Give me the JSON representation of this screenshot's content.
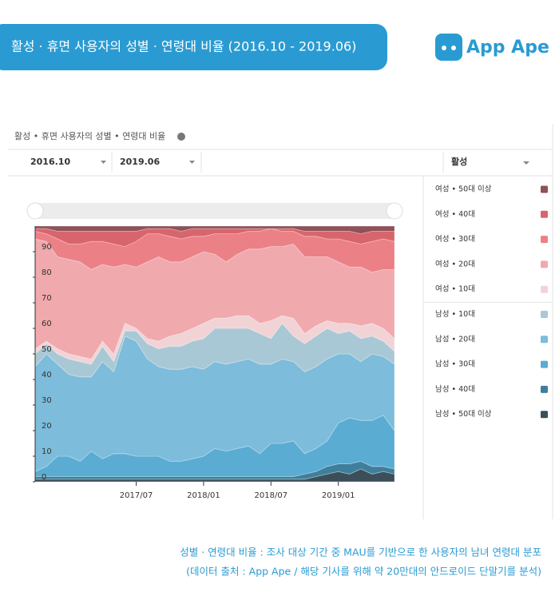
{
  "banner": "활성 · 휴면 사용자의 성별 · 연령대 비율 (2016.10 - 2019.06)",
  "logo": "App Ape",
  "filters": {
    "start": "2016.10",
    "end": "2019.06",
    "segment": "활성"
  },
  "caption": [
    "성별 · 연령대 비율 : 조사 대상 기간 중 MAU를 기반으로 한 사용자의 남녀 연령대 분포",
    "(데이터 출처 : App Ape / 해당 기사를 위해 약 20만대의 안드로이드 단말기를 분석)"
  ],
  "chart_data": {
    "type": "stacked_area",
    "title": "활성 • 휴면 사용자의 성별 • 연령대 비율",
    "x": [
      "2016/10",
      "2016/11",
      "2016/12",
      "2017/01",
      "2017/02",
      "2017/03",
      "2017/04",
      "2017/05",
      "2017/06",
      "2017/07",
      "2017/08",
      "2017/09",
      "2017/10",
      "2017/11",
      "2017/12",
      "2018/01",
      "2018/02",
      "2018/03",
      "2018/04",
      "2018/05",
      "2018/06",
      "2018/07",
      "2018/08",
      "2018/09",
      "2018/10",
      "2018/11",
      "2018/12",
      "2019/01",
      "2019/02",
      "2019/03",
      "2019/04",
      "2019/05",
      "2019/06"
    ],
    "xticks": [
      "2017/07",
      "2018/01",
      "2018/07",
      "2019/01"
    ],
    "ylim": [
      0,
      100
    ],
    "yticks": [
      0,
      10,
      20,
      30,
      40,
      50,
      60,
      70,
      80,
      90
    ],
    "series": [
      {
        "name": "남성 • 50대 이상",
        "color": "#3b4f5a",
        "values": [
          1,
          1,
          1,
          1,
          1,
          1,
          1,
          1,
          1,
          1,
          1,
          1,
          1,
          1,
          1,
          1,
          1,
          1,
          1,
          1,
          1,
          1,
          1,
          1,
          1,
          2,
          3,
          4,
          3,
          5,
          3,
          4,
          3
        ]
      },
      {
        "name": "남성 • 40대",
        "color": "#3f7f9c",
        "values": [
          1,
          1,
          1,
          1,
          1,
          1,
          1,
          1,
          1,
          1,
          1,
          1,
          1,
          1,
          1,
          1,
          1,
          1,
          1,
          1,
          1,
          1,
          1,
          1,
          2,
          2,
          3,
          3,
          4,
          3,
          3,
          2,
          2
        ]
      },
      {
        "name": "남성 • 30대",
        "color": "#5aacd3",
        "values": [
          2,
          4,
          8,
          8,
          6,
          10,
          7,
          9,
          9,
          8,
          8,
          8,
          6,
          6,
          7,
          8,
          11,
          10,
          11,
          12,
          9,
          13,
          13,
          14,
          8,
          9,
          10,
          16,
          18,
          16,
          18,
          20,
          15
        ]
      },
      {
        "name": "남성 • 20대",
        "color": "#7dbcda",
        "values": [
          41,
          44,
          36,
          32,
          33,
          29,
          38,
          32,
          46,
          45,
          38,
          35,
          36,
          36,
          36,
          34,
          34,
          34,
          34,
          34,
          35,
          31,
          33,
          31,
          32,
          32,
          32,
          27,
          25,
          23,
          26,
          23,
          26
        ]
      },
      {
        "name": "남성 • 10대",
        "color": "#a9c8d5",
        "values": [
          5,
          4,
          4,
          6,
          6,
          5,
          6,
          4,
          2,
          4,
          6,
          7,
          9,
          9,
          10,
          12,
          13,
          14,
          13,
          12,
          12,
          10,
          14,
          10,
          11,
          12,
          12,
          8,
          9,
          9,
          7,
          6,
          5
        ]
      },
      {
        "name": "여성 • 10대",
        "color": "#f1d3d6",
        "values": [
          2,
          1,
          2,
          2,
          2,
          2,
          2,
          3,
          3,
          1,
          2,
          3,
          4,
          5,
          5,
          6,
          4,
          4,
          5,
          5,
          4,
          7,
          3,
          7,
          4,
          4,
          3,
          4,
          3,
          5,
          5,
          5,
          5
        ]
      },
      {
        "name": "여성 • 20대",
        "color": "#f0a9ad",
        "values": [
          43,
          39,
          36,
          37,
          37,
          35,
          30,
          34,
          23,
          24,
          30,
          33,
          29,
          28,
          28,
          28,
          25,
          22,
          24,
          26,
          29,
          29,
          27,
          29,
          30,
          27,
          25,
          24,
          22,
          23,
          20,
          23,
          27
        ]
      },
      {
        "name": "여성 • 30대",
        "color": "#ec8087",
        "values": [
          3,
          3,
          7,
          6,
          7,
          11,
          9,
          9,
          7,
          10,
          11,
          9,
          10,
          9,
          8,
          6,
          8,
          11,
          8,
          7,
          7,
          7,
          6,
          5,
          8,
          8,
          7,
          9,
          10,
          9,
          12,
          12,
          11
        ]
      },
      {
        "name": "여성 • 40대",
        "color": "#d8656d",
        "values": [
          1,
          2,
          3,
          5,
          5,
          4,
          4,
          5,
          6,
          4,
          2,
          2,
          3,
          3,
          3,
          3,
          2,
          2,
          2,
          1,
          1,
          0,
          1,
          1,
          2,
          2,
          3,
          3,
          4,
          4,
          4,
          3,
          4
        ]
      },
      {
        "name": "여성 • 50대 이상",
        "color": "#8e5258",
        "values": [
          1,
          1,
          2,
          2,
          2,
          2,
          2,
          2,
          2,
          2,
          1,
          1,
          1,
          2,
          1,
          1,
          1,
          1,
          1,
          1,
          1,
          1,
          1,
          1,
          2,
          2,
          2,
          2,
          2,
          3,
          2,
          2,
          2
        ]
      }
    ]
  }
}
